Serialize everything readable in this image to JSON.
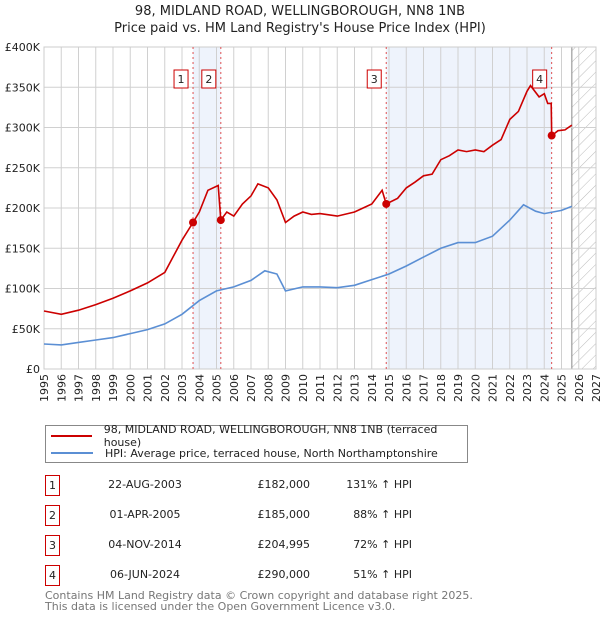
{
  "title_line1": "98, MIDLAND ROAD, WELLINGBOROUGH, NN8 1NB",
  "title_line2": "Price paid vs. HM Land Registry's House Price Index (HPI)",
  "chart_data": {
    "type": "line",
    "ylim": [
      0,
      400000
    ],
    "xlim": [
      1995,
      2027
    ],
    "yticks": [
      0,
      50000,
      100000,
      150000,
      200000,
      250000,
      300000,
      350000,
      400000
    ],
    "ytick_labels": [
      "£0",
      "£50K",
      "£100K",
      "£150K",
      "£200K",
      "£250K",
      "£300K",
      "£350K",
      "£400K"
    ],
    "xticks": [
      "1995",
      "1996",
      "1997",
      "1998",
      "1999",
      "2000",
      "2001",
      "2002",
      "2003",
      "2004",
      "2005",
      "2006",
      "2007",
      "2008",
      "2009",
      "2010",
      "2011",
      "2012",
      "2013",
      "2014",
      "2015",
      "2016",
      "2017",
      "2018",
      "2019",
      "2020",
      "2021",
      "2022",
      "2023",
      "2024",
      "2025",
      "2026",
      "2027"
    ],
    "grid": true,
    "forecast_hatch_from": 2025.6,
    "shaded_ranges": [
      [
        2003.64,
        2005.25
      ],
      [
        2014.84,
        2024.43
      ]
    ],
    "series": [
      {
        "name": "98, MIDLAND ROAD, WELLINGBOROUGH, NN8 1NB (terraced house)",
        "color": "#cc0000",
        "x": [
          1995,
          1996,
          1997,
          1998,
          1999,
          2000,
          2001,
          2002,
          2002.5,
          2003,
          2003.64,
          2004,
          2004.5,
          2005.1,
          2005.25,
          2005.6,
          2006,
          2006.5,
          2007,
          2007.4,
          2008,
          2008.5,
          2009,
          2009.5,
          2010,
          2010.5,
          2011,
          2012,
          2013,
          2013.5,
          2014,
          2014.6,
          2014.84,
          2015.5,
          2016,
          2016.5,
          2017,
          2017.5,
          2018,
          2018.5,
          2019,
          2019.5,
          2020,
          2020.5,
          2021,
          2021.5,
          2022,
          2022.5,
          2023,
          2023.2,
          2023.7,
          2024,
          2024.2,
          2024.4,
          2024.43,
          2024.8,
          2025.2,
          2025.6
        ],
        "values": [
          72000,
          68000,
          73000,
          80000,
          88000,
          97000,
          107000,
          120000,
          140000,
          160000,
          182000,
          195000,
          222000,
          228000,
          185000,
          195000,
          190000,
          205000,
          215000,
          230000,
          225000,
          210000,
          182000,
          190000,
          195000,
          192000,
          193000,
          190000,
          195000,
          200000,
          205000,
          222000,
          204995,
          212000,
          225000,
          232000,
          240000,
          242000,
          260000,
          265000,
          272000,
          270000,
          272000,
          270000,
          278000,
          285000,
          310000,
          320000,
          345000,
          352000,
          338000,
          342000,
          330000,
          330000,
          290000,
          296000,
          297000,
          303000
        ]
      },
      {
        "name": "HPI: Average price, terraced house, North Northamptonshire",
        "color": "#5b8fd4",
        "x": [
          1995,
          1996,
          1997,
          1998,
          1999,
          2000,
          2001,
          2002,
          2003,
          2004,
          2005,
          2006,
          2007,
          2007.8,
          2008.5,
          2009,
          2010,
          2011,
          2012,
          2013,
          2014,
          2015,
          2016,
          2017,
          2018,
          2019,
          2020,
          2021,
          2022,
          2022.8,
          2023.5,
          2024,
          2025,
          2025.6
        ],
        "values": [
          31000,
          30000,
          33000,
          36000,
          39000,
          44000,
          49000,
          56000,
          68000,
          85000,
          97000,
          102000,
          110000,
          122000,
          118000,
          97000,
          102000,
          102000,
          101000,
          104000,
          111000,
          118000,
          128000,
          139000,
          150000,
          157000,
          157000,
          165000,
          185000,
          204000,
          196000,
          193000,
          197000,
          202000
        ]
      }
    ],
    "sales": [
      {
        "n": "1",
        "x": 2003.64,
        "value": 182000
      },
      {
        "n": "2",
        "x": 2005.25,
        "value": 185000
      },
      {
        "n": "3",
        "x": 2014.84,
        "value": 204995
      },
      {
        "n": "4",
        "x": 2024.43,
        "value": 290000
      }
    ]
  },
  "legend": {
    "red": "98, MIDLAND ROAD, WELLINGBOROUGH, NN8 1NB (terraced house)",
    "blue": "HPI: Average price, terraced house, North Northamptonshire"
  },
  "transactions": [
    {
      "n": "1",
      "date": "22-AUG-2003",
      "price": "£182,000",
      "hpi": "131% ↑ HPI"
    },
    {
      "n": "2",
      "date": "01-APR-2005",
      "price": "£185,000",
      "hpi": "88% ↑ HPI"
    },
    {
      "n": "3",
      "date": "04-NOV-2014",
      "price": "£204,995",
      "hpi": "72% ↑ HPI"
    },
    {
      "n": "4",
      "date": "06-JUN-2024",
      "price": "£290,000",
      "hpi": "51% ↑ HPI"
    }
  ],
  "footer_line1": "Contains HM Land Registry data © Crown copyright and database right 2025.",
  "footer_line2": "This data is licensed under the Open Government Licence v3.0."
}
